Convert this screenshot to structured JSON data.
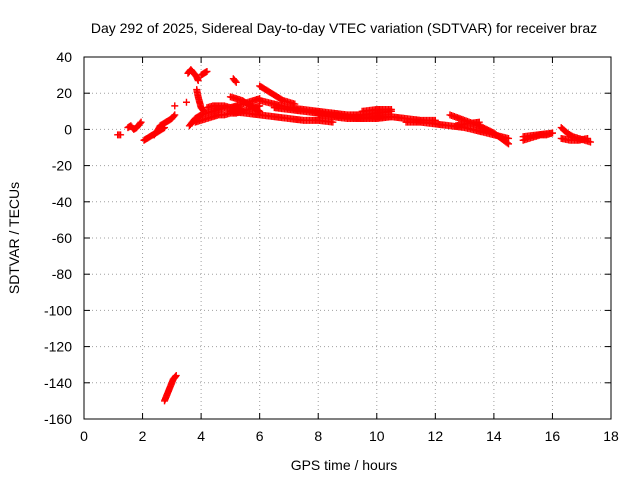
{
  "chart_data": {
    "type": "scatter",
    "title": "Day 292 of 2025, Sidereal Day-to-day VTEC variation (SDTVAR) for receiver braz",
    "xlabel": "GPS time / hours",
    "ylabel": "SDTVAR / TECUs",
    "xlim": [
      0,
      18
    ],
    "ylim": [
      -160,
      40
    ],
    "xticks": [
      0,
      2,
      4,
      6,
      8,
      10,
      12,
      14,
      16,
      18
    ],
    "yticks": [
      40,
      20,
      0,
      -20,
      -40,
      -60,
      -80,
      -100,
      -120,
      -140,
      -160
    ],
    "grid": true,
    "marker": "+",
    "marker_color": "#ff0000",
    "series": [
      {
        "name": "SDTVAR",
        "segments": [
          {
            "x": [
              1.15,
              1.25
            ],
            "y": [
              -3,
              -3
            ]
          },
          {
            "x": [
              1.5,
              1.6,
              1.7,
              1.8,
              1.9,
              1.95
            ],
            "y": [
              1,
              2,
              0,
              1,
              3,
              4
            ]
          },
          {
            "x": [
              2.05,
              2.15,
              2.25,
              2.35,
              2.45,
              2.55,
              2.65,
              2.75
            ],
            "y": [
              -6,
              -5,
              -4,
              -3,
              -2,
              -1,
              0,
              1
            ]
          },
          {
            "x": [
              2.4,
              2.5,
              2.6,
              2.7,
              2.8,
              2.9,
              3.0,
              3.1
            ],
            "y": [
              -3,
              -1,
              2,
              3,
              4,
              5,
              6,
              8
            ]
          },
          {
            "x": [
              2.75,
              2.8,
              2.85,
              2.9,
              2.95,
              3.0,
              3.05,
              3.1,
              3.15
            ],
            "y": [
              -150,
              -148,
              -146,
              -144,
              -142,
              -140,
              -138,
              -137,
              -136
            ]
          },
          {
            "x": [
              3.1
            ],
            "y": [
              13
            ]
          },
          {
            "x": [
              3.5
            ],
            "y": [
              15
            ]
          },
          {
            "x": [
              3.55,
              3.6,
              3.65,
              3.7,
              3.75,
              3.8,
              3.85,
              3.9
            ],
            "y": [
              31,
              32,
              33,
              32,
              31,
              30,
              29,
              27
            ]
          },
          {
            "x": [
              3.85,
              3.9,
              3.95,
              4.0,
              4.05,
              4.1
            ],
            "y": [
              22,
              18,
              15,
              12,
              11,
              10
            ]
          },
          {
            "x": [
              4.0,
              4.1,
              4.2
            ],
            "y": [
              30,
              31,
              32
            ]
          },
          {
            "x": [
              3.6,
              3.7,
              3.8,
              3.9,
              4.0
            ],
            "y": [
              2,
              4,
              6,
              7,
              8
            ]
          },
          {
            "x": [
              3.8,
              4.0,
              4.2,
              4.4,
              4.6,
              4.8,
              5.0,
              5.2,
              5.4,
              5.6,
              5.8,
              6.0
            ],
            "y": [
              4,
              5,
              6,
              7,
              8,
              8,
              9,
              9,
              10,
              11,
              12,
              13
            ]
          },
          {
            "x": [
              4.0,
              4.2,
              4.4,
              4.6,
              4.8,
              5.0,
              5.2,
              5.4,
              5.6,
              5.8,
              6.0
            ],
            "y": [
              8,
              9,
              10,
              11,
              12,
              12,
              13,
              14,
              15,
              16,
              17
            ]
          },
          {
            "x": [
              4.2,
              4.4,
              4.6,
              4.8,
              5.0,
              5.2,
              5.4
            ],
            "y": [
              12,
              13,
              13,
              13,
              12,
              12,
              11
            ]
          },
          {
            "x": [
              5.1,
              5.2
            ],
            "y": [
              28,
              26
            ]
          },
          {
            "x": [
              5.0,
              5.2,
              5.4,
              5.6,
              5.8,
              6.0
            ],
            "y": [
              18,
              17,
              16,
              14,
              12,
              10
            ]
          },
          {
            "x": [
              6.0,
              6.2,
              6.4,
              6.6,
              6.8,
              7.0,
              7.2
            ],
            "y": [
              24,
              22,
              20,
              18,
              16,
              15,
              14
            ]
          },
          {
            "x": [
              5.0,
              5.5,
              6.0,
              6.5,
              7.0,
              7.5,
              8.0,
              8.5
            ],
            "y": [
              10,
              9,
              8,
              7,
              6,
              5,
              5,
              4
            ]
          },
          {
            "x": [
              6.0,
              6.5,
              7.0,
              7.5,
              8.0,
              8.5,
              9.0,
              9.5,
              10.0,
              10.5
            ],
            "y": [
              16,
              14,
              12,
              11,
              10,
              9,
              8,
              8,
              9,
              10
            ]
          },
          {
            "x": [
              6.5,
              7.0,
              7.5,
              8.0,
              8.5,
              9.0,
              9.5,
              10.0,
              10.5
            ],
            "y": [
              12,
              11,
              10,
              9,
              8,
              7,
              6,
              6,
              7
            ]
          },
          {
            "x": [
              8.0,
              8.5,
              9.0,
              9.5,
              10.0,
              10.5,
              11.0,
              11.5,
              12.0
            ],
            "y": [
              8,
              7,
              6,
              6,
              7,
              7,
              6,
              5,
              5
            ]
          },
          {
            "x": [
              9.5,
              10.0,
              10.5
            ],
            "y": [
              10,
              11,
              11
            ]
          },
          {
            "x": [
              11.0,
              11.5,
              12.0,
              12.5,
              13.0,
              13.5,
              14.0,
              14.5
            ],
            "y": [
              4,
              4,
              3,
              2,
              1,
              -1,
              -3,
              -5
            ]
          },
          {
            "x": [
              12.5,
              13.0,
              13.5,
              14.0,
              14.5
            ],
            "y": [
              8,
              5,
              2,
              -2,
              -8
            ]
          },
          {
            "x": [
              12.7,
              13.0,
              13.5
            ],
            "y": [
              2,
              3,
              4
            ]
          },
          {
            "x": [
              15.0,
              15.2,
              15.4,
              15.6,
              15.8,
              16.0
            ],
            "y": [
              -6,
              -5,
              -4,
              -3,
              -3,
              -2
            ]
          },
          {
            "x": [
              15.0,
              15.5,
              16.0
            ],
            "y": [
              -4,
              -3,
              -2
            ]
          },
          {
            "x": [
              16.3,
              16.5,
              16.7,
              16.9,
              17.1,
              17.3
            ],
            "y": [
              1,
              -2,
              -4,
              -5,
              -6,
              -7
            ]
          },
          {
            "x": [
              16.3,
              16.6,
              16.9,
              17.2
            ],
            "y": [
              -5,
              -6,
              -6,
              -5
            ]
          }
        ]
      }
    ]
  }
}
